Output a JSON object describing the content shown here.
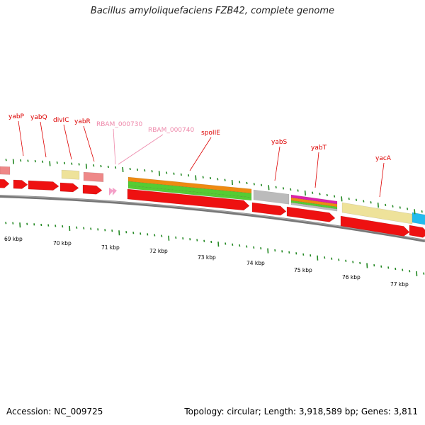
{
  "title": "Bacillus amyloliquefaciens FZB42, complete genome",
  "accession": "Accession: NC_009725",
  "stats": "Topology: circular; Length: 3,918,589 bp; Genes: 3,811",
  "colors": {
    "cds": "#ee1111",
    "label": "#dd0000",
    "label_pink": "#ee88aa",
    "pseudo": "#ee8888",
    "tick": "#228822",
    "backbone": "#777777",
    "yellow": "#eee29a",
    "orange": "#ee8a11",
    "green": "#55cc33",
    "gray": "#bbbbbb",
    "magenta": "#dd22aa",
    "cyan": "#22bbee",
    "pink_arrow": "#f4a0c8"
  },
  "kbp_labels": [
    "69 kbp",
    "70 kbp",
    "71 kbp",
    "72 kbp",
    "73 kbp",
    "74 kbp",
    "75 kbp",
    "76 kbp",
    "77 kbp"
  ],
  "gene_labels": [
    {
      "text": "yabP",
      "tone": "red"
    },
    {
      "text": "yabQ",
      "tone": "red"
    },
    {
      "text": "divIC",
      "tone": "red"
    },
    {
      "text": "yabR",
      "tone": "red"
    },
    {
      "text": "RBAM_000730",
      "tone": "pink"
    },
    {
      "text": "RBAM_000740",
      "tone": "pink"
    },
    {
      "text": "spoIIE",
      "tone": "red"
    },
    {
      "text": "yabS",
      "tone": "red"
    },
    {
      "text": "yabT",
      "tone": "red"
    },
    {
      "text": "yacA",
      "tone": "red"
    }
  ]
}
